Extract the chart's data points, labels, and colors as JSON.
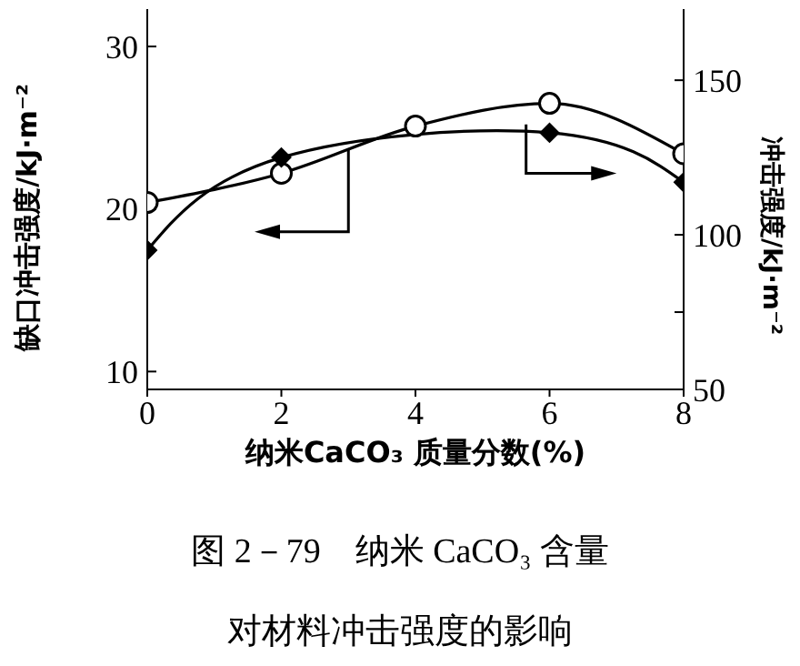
{
  "chart_data": {
    "type": "line",
    "xlabel": "纳米CaCO₃ 质量分数(%)",
    "ylabel": "缺口冲击强度/kJ·m⁻²",
    "y2label": "冲击强度/kJ·m⁻²",
    "x": [
      0,
      2,
      4,
      6,
      8
    ],
    "xlim": [
      0,
      8
    ],
    "xticks": [
      0,
      2,
      4,
      6,
      8
    ],
    "ylim": [
      8.9,
      32.3
    ],
    "yticks": [
      10,
      20,
      30
    ],
    "y2lim": [
      50,
      173
    ],
    "y2ticks": [
      50,
      {
        "value": 75,
        "label": null
      },
      100,
      {
        "value": 125,
        "label": null
      },
      150
    ],
    "series": [
      {
        "color": "#000000",
        "marker": "circle",
        "values": [
          20.4,
          22.2,
          25.1,
          26.5,
          23.4
        ]
      },
      {
        "color": "#000000",
        "marker": "diamond",
        "axis": "y2",
        "x": [
          0,
          2,
          6,
          8
        ],
        "values": [
          95,
          125,
          133,
          117
        ]
      }
    ],
    "grid": false,
    "legend": false,
    "annotations": [
      "图 2－79　纳米 CaCO₃ 含量",
      "对材料冲击强度的影响"
    ]
  }
}
